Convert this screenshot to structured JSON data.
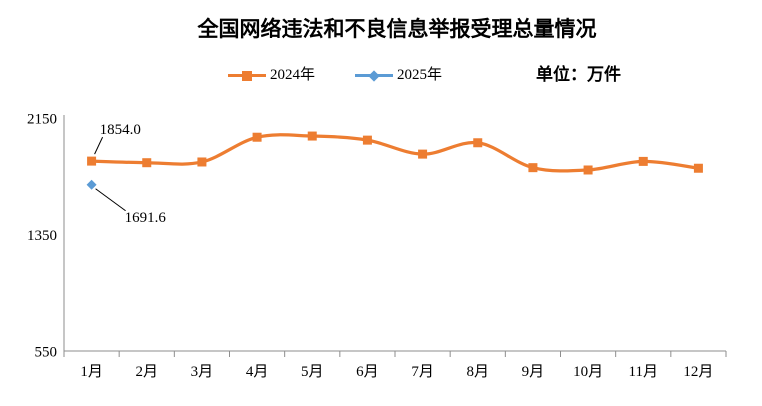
{
  "title": "全国网络违法和不良信息举报受理总量情况",
  "unit_label": "单位：万件",
  "legend": [
    {
      "name": "2024年",
      "color": "#ED7D31",
      "marker": "square"
    },
    {
      "name": "2025年",
      "color": "#5B9BD5",
      "marker": "diamond"
    }
  ],
  "colors": {
    "series_2024": "#ED7D31",
    "series_2025": "#5B9BD5",
    "axis": "#8e8e8e",
    "text": "#000000",
    "background": "#ffffff"
  },
  "chart_data": {
    "type": "line",
    "title": "全国网络违法和不良信息举报受理总量情况",
    "unit": "万件",
    "categories": [
      "1月",
      "2月",
      "3月",
      "4月",
      "5月",
      "6月",
      "7月",
      "8月",
      "9月",
      "10月",
      "11月",
      "12月"
    ],
    "series": [
      {
        "name": "2024年",
        "color": "#ED7D31",
        "marker": "square",
        "smooth": true,
        "values": [
          1854.0,
          1843,
          1848,
          2018,
          2026,
          1998,
          1902,
          1980,
          1809,
          1793,
          1852,
          1805
        ]
      },
      {
        "name": "2025年",
        "color": "#5B9BD5",
        "marker": "diamond",
        "smooth": true,
        "values": [
          1691.6
        ]
      }
    ],
    "annotations": [
      {
        "series": 0,
        "index": 0,
        "text": "1854.0"
      },
      {
        "series": 1,
        "index": 0,
        "text": "1691.6"
      }
    ],
    "yticks": [
      2150,
      1350,
      550
    ],
    "ylim": [
      550,
      2150
    ],
    "grid": false,
    "legend_position": "top"
  }
}
